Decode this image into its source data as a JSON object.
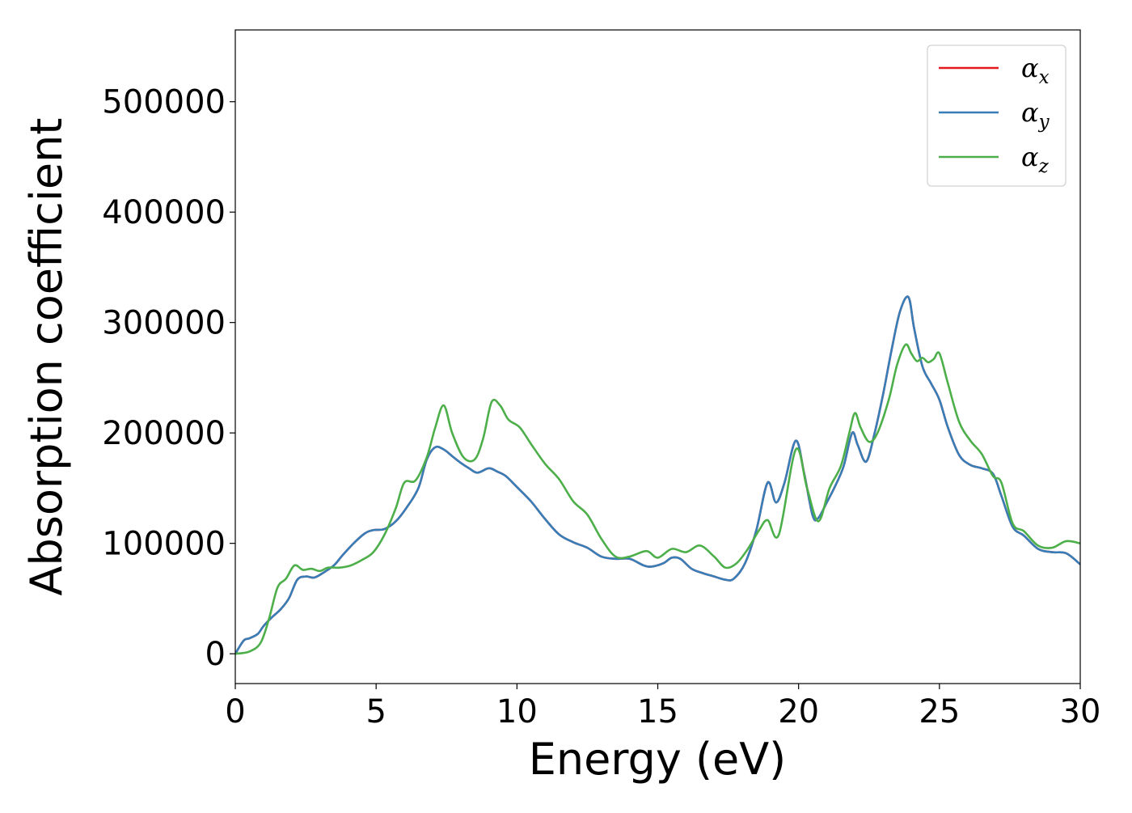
{
  "chart_data": {
    "type": "line",
    "xlabel": "Energy (eV)",
    "ylabel": "Absorption coefficient",
    "xlim": [
      0,
      30
    ],
    "ylim": [
      -27000,
      565000
    ],
    "xticks": [
      0,
      5,
      10,
      15,
      20,
      25,
      30
    ],
    "yticks": [
      0,
      100000,
      200000,
      300000,
      400000,
      500000
    ],
    "grid": false,
    "legend_position": "top-right",
    "series": [
      {
        "name": "α_x",
        "legend_symbol": "α",
        "legend_sub": "x",
        "color": "#e41a1c",
        "x": [
          0,
          0.3,
          0.5,
          0.8,
          1.0,
          1.3,
          1.6,
          1.9,
          2.2,
          2.5,
          2.8,
          3.1,
          3.5,
          3.8,
          4.2,
          4.6,
          4.9,
          5.3,
          5.7,
          6.1,
          6.5,
          6.8,
          7.1,
          7.4,
          7.7,
          8.0,
          8.3,
          8.6,
          9.0,
          9.3,
          9.6,
          10.0,
          10.5,
          11.0,
          11.5,
          12.0,
          12.5,
          13.0,
          13.5,
          14.0,
          14.5,
          14.8,
          15.2,
          15.5,
          15.8,
          16.2,
          16.6,
          17.0,
          17.4,
          17.7,
          18.1,
          18.5,
          18.9,
          19.2,
          19.5,
          19.9,
          20.2,
          20.5,
          20.7,
          21.0,
          21.3,
          21.6,
          21.9,
          22.1,
          22.4,
          22.7,
          23.0,
          23.3,
          23.6,
          23.9,
          24.1,
          24.4,
          24.7,
          25.0,
          25.3,
          25.7,
          26.1,
          26.5,
          26.9,
          27.2,
          27.6,
          28.0,
          28.5,
          29.0,
          29.5,
          30.0
        ],
        "values": [
          0,
          12000,
          14000,
          18000,
          25000,
          33000,
          40000,
          50000,
          67000,
          70000,
          69000,
          73000,
          80000,
          89000,
          100000,
          109000,
          112000,
          113000,
          120000,
          133000,
          150000,
          176000,
          187000,
          185000,
          179000,
          173000,
          168000,
          164000,
          168000,
          165000,
          161000,
          151000,
          138000,
          122000,
          108000,
          101000,
          96000,
          88000,
          86000,
          86000,
          80000,
          79000,
          82000,
          87000,
          86000,
          77000,
          73000,
          70000,
          67000,
          68000,
          82000,
          112000,
          155000,
          137000,
          155000,
          193000,
          163000,
          125000,
          123000,
          137000,
          152000,
          170000,
          200000,
          189000,
          174000,
          200000,
          235000,
          275000,
          310000,
          323000,
          295000,
          260000,
          245000,
          230000,
          205000,
          180000,
          171000,
          168000,
          163000,
          143000,
          115000,
          107000,
          95000,
          92000,
          91000,
          81000
        ]
      },
      {
        "name": "α_y",
        "legend_symbol": "α",
        "legend_sub": "y",
        "color": "#377eb8",
        "x": [
          0,
          0.3,
          0.5,
          0.8,
          1.0,
          1.3,
          1.6,
          1.9,
          2.2,
          2.5,
          2.8,
          3.1,
          3.5,
          3.8,
          4.2,
          4.6,
          4.9,
          5.3,
          5.7,
          6.1,
          6.5,
          6.8,
          7.1,
          7.4,
          7.7,
          8.0,
          8.3,
          8.6,
          9.0,
          9.3,
          9.6,
          10.0,
          10.5,
          11.0,
          11.5,
          12.0,
          12.5,
          13.0,
          13.5,
          14.0,
          14.5,
          14.8,
          15.2,
          15.5,
          15.8,
          16.2,
          16.6,
          17.0,
          17.4,
          17.7,
          18.1,
          18.5,
          18.9,
          19.2,
          19.5,
          19.9,
          20.2,
          20.5,
          20.7,
          21.0,
          21.3,
          21.6,
          21.9,
          22.1,
          22.4,
          22.7,
          23.0,
          23.3,
          23.6,
          23.9,
          24.1,
          24.4,
          24.7,
          25.0,
          25.3,
          25.7,
          26.1,
          26.5,
          26.9,
          27.2,
          27.6,
          28.0,
          28.5,
          29.0,
          29.5,
          30.0
        ],
        "values": [
          0,
          12000,
          14000,
          18000,
          25000,
          33000,
          40000,
          50000,
          67000,
          70000,
          69000,
          73000,
          80000,
          89000,
          100000,
          109000,
          112000,
          113000,
          120000,
          133000,
          150000,
          176000,
          187000,
          185000,
          179000,
          173000,
          168000,
          164000,
          168000,
          165000,
          161000,
          151000,
          138000,
          122000,
          108000,
          101000,
          96000,
          88000,
          86000,
          86000,
          80000,
          79000,
          82000,
          87000,
          86000,
          77000,
          73000,
          70000,
          67000,
          68000,
          82000,
          112000,
          155000,
          137000,
          155000,
          193000,
          163000,
          125000,
          123000,
          137000,
          152000,
          170000,
          200000,
          189000,
          174000,
          200000,
          235000,
          275000,
          310000,
          323000,
          295000,
          260000,
          245000,
          230000,
          205000,
          180000,
          171000,
          168000,
          163000,
          143000,
          115000,
          107000,
          95000,
          92000,
          91000,
          81000
        ]
      },
      {
        "name": "α_z",
        "legend_symbol": "α",
        "legend_sub": "z",
        "color": "#4daf4a",
        "x": [
          0,
          0.5,
          0.9,
          1.2,
          1.5,
          1.8,
          2.1,
          2.4,
          2.7,
          3.0,
          3.3,
          3.7,
          4.1,
          4.5,
          4.9,
          5.3,
          5.7,
          6.0,
          6.4,
          6.8,
          7.1,
          7.4,
          7.7,
          8.1,
          8.5,
          8.8,
          9.1,
          9.4,
          9.7,
          10.1,
          10.5,
          11.0,
          11.5,
          12.0,
          12.5,
          13.0,
          13.5,
          14.0,
          14.6,
          15.0,
          15.5,
          16.0,
          16.5,
          17.0,
          17.4,
          17.8,
          18.2,
          18.6,
          18.9,
          19.3,
          19.9,
          20.3,
          20.7,
          21.1,
          21.5,
          21.8,
          22.0,
          22.2,
          22.5,
          22.8,
          23.2,
          23.5,
          23.8,
          24.0,
          24.2,
          24.4,
          24.6,
          24.8,
          25.0,
          25.3,
          25.7,
          26.1,
          26.5,
          26.9,
          27.2,
          27.6,
          28.0,
          28.5,
          29.0,
          29.5,
          30.0
        ],
        "values": [
          0,
          2000,
          10000,
          32000,
          60000,
          68000,
          80000,
          76000,
          77000,
          75000,
          78000,
          78000,
          80000,
          85000,
          92000,
          108000,
          132000,
          155000,
          157000,
          178000,
          205000,
          225000,
          200000,
          178000,
          176000,
          195000,
          228000,
          225000,
          212000,
          205000,
          190000,
          172000,
          158000,
          138000,
          126000,
          104000,
          88000,
          88000,
          93000,
          87000,
          95000,
          92000,
          98000,
          88000,
          78000,
          82000,
          95000,
          112000,
          121000,
          108000,
          185000,
          150000,
          120000,
          150000,
          170000,
          200000,
          218000,
          205000,
          192000,
          200000,
          230000,
          262000,
          280000,
          272000,
          265000,
          268000,
          264000,
          267000,
          272000,
          245000,
          210000,
          193000,
          181000,
          161000,
          155000,
          118000,
          111000,
          98000,
          96000,
          102000,
          100000
        ]
      }
    ]
  }
}
